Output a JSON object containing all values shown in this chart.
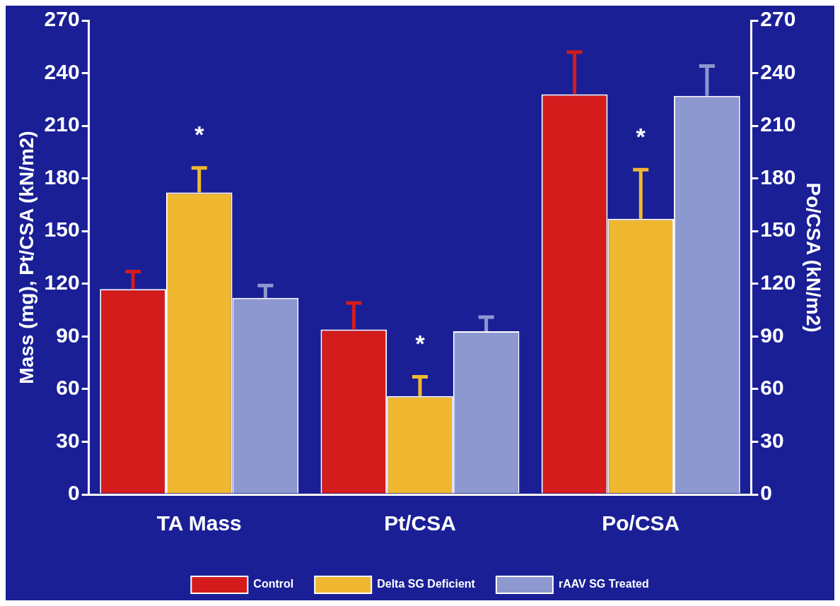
{
  "chart_data": {
    "type": "bar",
    "xlabel": null,
    "ylabel": "Mass (mg), Pt/CSA (kN/m2)",
    "y2label": "Po/CSA (kN/m2)",
    "categories": [
      "TA Mass",
      "Pt/CSA",
      "Po/CSA"
    ],
    "series": [
      {
        "name": "Control",
        "color": "#d41c1c",
        "values": [
          117,
          94,
          228
        ],
        "errors": [
          [
            117,
            127
          ],
          [
            94,
            109
          ],
          [
            228,
            252
          ]
        ]
      },
      {
        "name": "Delta SG Deficient",
        "color": "#f0b830",
        "values": [
          172,
          56,
          157
        ],
        "errors": [
          [
            172,
            186
          ],
          [
            56,
            67
          ],
          [
            157,
            185
          ]
        ]
      },
      {
        "name": "rAAV SG Treated",
        "color": "#8e98d0",
        "values": [
          112,
          93,
          227
        ],
        "errors": [
          [
            112,
            119
          ],
          [
            93,
            101
          ],
          [
            227,
            244
          ]
        ]
      }
    ],
    "ylim": [
      0,
      270
    ],
    "yticks": [
      0,
      30,
      60,
      90,
      120,
      150,
      180,
      210,
      240,
      270
    ],
    "y2lim": [
      0,
      270
    ],
    "y2ticks": [
      0,
      30,
      60,
      90,
      120,
      150,
      180,
      210,
      240,
      270
    ],
    "grid": false,
    "legend": "bottom",
    "annotations": [
      "*",
      "*",
      "*"
    ]
  }
}
